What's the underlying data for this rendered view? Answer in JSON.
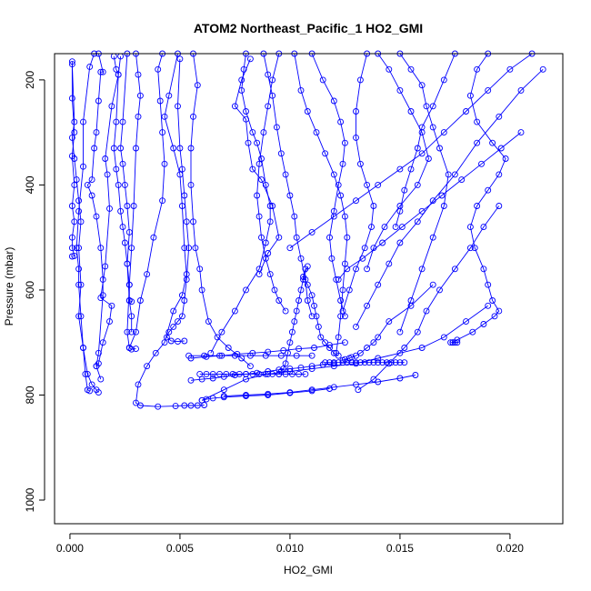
{
  "chart_data": {
    "type": "line",
    "title": "ATOM2 Northeast_Pacific_1 HO2_GMI",
    "xlabel": "HO2_GMI",
    "ylabel": "Pressure (mbar)",
    "xlim": [
      -0.0007,
      0.0224
    ],
    "ylim": [
      1045,
      150
    ],
    "y_reversed": true,
    "x_ticks": [
      "0.000",
      "0.005",
      "0.010",
      "0.015",
      "0.020"
    ],
    "y_ticks": [
      "200",
      "400",
      "600",
      "800",
      "1000"
    ],
    "grid": false,
    "legend": "none",
    "series_color": "#0000ff",
    "marker": "open-circle",
    "series": [
      {
        "x": [
          0.0001,
          0.0001,
          0.0002,
          0.0001,
          0.0002,
          0.0001,
          0.0002,
          0.0001,
          0.0001,
          0.0002,
          0.0001
        ],
        "y": [
          165,
          235,
          300,
          345,
          400,
          440,
          470,
          500,
          520,
          535,
          536
        ]
      },
      {
        "x": [
          0.0001,
          0.0002,
          0.0001,
          0.0002,
          0.0003,
          0.0004,
          0.0005,
          0.0004,
          0.0005,
          0.0004,
          0.0006,
          0.0008,
          0.001,
          0.0012,
          0.0013
        ],
        "y": [
          170,
          280,
          310,
          350,
          390,
          430,
          470,
          520,
          590,
          650,
          710,
          760,
          780,
          790,
          795
        ]
      },
      {
        "x": [
          0.0011,
          0.0009,
          0.0006,
          0.0006,
          0.0004,
          0.0003,
          0.0004,
          0.0004,
          0.0005,
          0.0006,
          0.0007,
          0.0008,
          0.0009
        ],
        "y": [
          150,
          175,
          280,
          365,
          450,
          520,
          560,
          590,
          650,
          710,
          760,
          790,
          792
        ]
      },
      {
        "x": [
          0.0013,
          0.0015,
          0.0014,
          0.0013,
          0.0012,
          0.0011,
          0.001,
          0.0008,
          0.001,
          0.0012,
          0.0014,
          0.0015,
          0.0015,
          0.0013,
          0.0012,
          0.0014
        ],
        "y": [
          150,
          185,
          185,
          240,
          300,
          330,
          390,
          400,
          420,
          460,
          520,
          580,
          610,
          720,
          745,
          770
        ]
      },
      {
        "x": [
          0.002,
          0.0021,
          0.0022,
          0.0019,
          0.0016,
          0.0017,
          0.0018,
          0.0016,
          0.0014,
          0.0019,
          0.0018,
          0.0015,
          0.0013,
          0.0012
        ],
        "y": [
          155,
          180,
          190,
          250,
          350,
          380,
          445,
          555,
          615,
          630,
          660,
          700,
          740,
          745
        ]
      },
      {
        "x": [
          0.0023,
          0.0022,
          0.0021,
          0.002,
          0.0021,
          0.0022,
          0.0023,
          0.0024,
          0.0025,
          0.0026,
          0.0027,
          0.0027,
          0.0028,
          0.0028
        ],
        "y": [
          155,
          190,
          280,
          330,
          370,
          400,
          450,
          480,
          510,
          550,
          590,
          620,
          650,
          680
        ]
      },
      {
        "x": [
          0.0026,
          0.0024,
          0.0023,
          0.0024,
          0.0025,
          0.0026,
          0.0027,
          0.0026,
          0.0027,
          0.0028
        ],
        "y": [
          150,
          280,
          330,
          360,
          400,
          440,
          490,
          550,
          620,
          622
        ]
      },
      {
        "x": [
          0.003,
          0.0031,
          0.0032,
          0.0031,
          0.003,
          0.0029,
          0.0028,
          0.0027,
          0.0026,
          0.0027,
          0.0028,
          0.003
        ],
        "y": [
          150,
          190,
          230,
          270,
          330,
          440,
          520,
          590,
          680,
          710,
          713,
          712
        ]
      },
      {
        "x": [
          0.0042,
          0.004,
          0.0041,
          0.0042,
          0.0043,
          0.0042,
          0.0038,
          0.0035,
          0.0032,
          0.003,
          0.0027
        ],
        "y": [
          150,
          180,
          240,
          300,
          360,
          430,
          500,
          570,
          620,
          680,
          710
        ]
      },
      {
        "x": [
          0.0049,
          0.0045,
          0.0043,
          0.0047,
          0.005,
          0.0051,
          0.0052,
          0.0053,
          0.0051,
          0.0047,
          0.0043,
          0.0039,
          0.0035,
          0.0031,
          0.003,
          0.0032,
          0.004,
          0.0048,
          0.0052,
          0.0055,
          0.0058,
          0.0061
        ],
        "y": [
          150,
          230,
          270,
          330,
          380,
          440,
          520,
          570,
          610,
          640,
          700,
          720,
          745,
          780,
          815,
          820,
          822,
          821,
          820,
          820,
          820,
          819
        ]
      },
      {
        "x": [
          0.005,
          0.0049,
          0.005,
          0.0051,
          0.0052,
          0.0053,
          0.0054,
          0.0053,
          0.0052,
          0.0051,
          0.0049,
          0.0047,
          0.0045,
          0.0044,
          0.0046,
          0.0049,
          0.0052
        ],
        "y": [
          160,
          250,
          330,
          370,
          420,
          470,
          520,
          580,
          620,
          650,
          660,
          670,
          680,
          690,
          697,
          698,
          697
        ]
      },
      {
        "x": [
          0.0056,
          0.0058,
          0.0056,
          0.0055,
          0.0055,
          0.0056,
          0.0057,
          0.0059,
          0.006,
          0.0063,
          0.0067,
          0.0072,
          0.0078,
          0.0082
        ],
        "y": [
          150,
          210,
          270,
          330,
          400,
          470,
          520,
          560,
          600,
          660,
          690,
          710,
          730,
          745
        ]
      },
      {
        "x": [
          0.008,
          0.0079,
          0.0078,
          0.008,
          0.0083,
          0.0085,
          0.0087,
          0.0089,
          0.0091,
          0.0091,
          0.0089,
          0.0086,
          0.008,
          0.0075,
          0.0069,
          0.0064
        ],
        "y": [
          150,
          180,
          220,
          260,
          300,
          320,
          350,
          400,
          440,
          470,
          510,
          560,
          600,
          640,
          680,
          720
        ]
      },
      {
        "x": [
          0.0088,
          0.009,
          0.0092,
          0.0094,
          0.0096,
          0.0098,
          0.01,
          0.0102,
          0.0103,
          0.0105,
          0.0107,
          0.0108,
          0.011
        ],
        "y": [
          150,
          190,
          230,
          290,
          340,
          380,
          420,
          460,
          500,
          540,
          580,
          620,
          650
        ]
      },
      {
        "x": [
          0.0082,
          0.0078,
          0.0075,
          0.008,
          0.0081,
          0.0083,
          0.0087,
          0.0092,
          0.0095,
          0.009,
          0.0086
        ],
        "y": [
          160,
          200,
          250,
          275,
          320,
          370,
          390,
          440,
          500,
          530,
          570
        ]
      },
      {
        "x": [
          0.0095,
          0.0092,
          0.009,
          0.0088,
          0.0086,
          0.0085,
          0.0086,
          0.0087,
          0.0089,
          0.0091,
          0.0093,
          0.0095,
          0.0098
        ],
        "y": [
          150,
          200,
          250,
          300,
          360,
          420,
          460,
          500,
          540,
          570,
          600,
          620,
          640
        ]
      },
      {
        "x": [
          0.0102,
          0.0105,
          0.0108,
          0.0112,
          0.0116,
          0.012,
          0.0123,
          0.0125,
          0.0126,
          0.0125,
          0.0124,
          0.0123,
          0.0122,
          0.0121
        ],
        "y": [
          150,
          220,
          260,
          300,
          340,
          380,
          420,
          460,
          500,
          550,
          600,
          650,
          690,
          720
        ]
      },
      {
        "x": [
          0.011,
          0.0115,
          0.012,
          0.0123,
          0.0125,
          0.0124,
          0.0122,
          0.012,
          0.0118,
          0.0119,
          0.0121,
          0.0123,
          0.0125
        ],
        "y": [
          150,
          200,
          240,
          280,
          320,
          360,
          400,
          450,
          500,
          540,
          580,
          620,
          650
        ]
      },
      {
        "x": [
          0.0135,
          0.0132,
          0.013,
          0.013,
          0.0132,
          0.0135,
          0.0138,
          0.0137,
          0.0134,
          0.013,
          0.0127,
          0.0124
        ],
        "y": [
          150,
          200,
          260,
          310,
          360,
          400,
          440,
          480,
          520,
          560,
          600,
          640
        ]
      },
      {
        "x": [
          0.014,
          0.0145,
          0.015,
          0.0155,
          0.016,
          0.0163,
          0.0158,
          0.015,
          0.0143,
          0.0138,
          0.0135
        ],
        "y": [
          150,
          180,
          220,
          260,
          300,
          350,
          400,
          440,
          480,
          520,
          560
        ]
      },
      {
        "x": [
          0.015,
          0.0155,
          0.016,
          0.0162,
          0.0165,
          0.0168,
          0.0172,
          0.017,
          0.0165,
          0.016,
          0.0155,
          0.015
        ],
        "y": [
          150,
          180,
          210,
          250,
          290,
          330,
          380,
          440,
          500,
          560,
          620,
          680
        ]
      },
      {
        "x": [
          0.0175,
          0.017,
          0.0165,
          0.016,
          0.0158,
          0.0155,
          0.0152,
          0.015,
          0.0148
        ],
        "y": [
          150,
          200,
          250,
          290,
          330,
          370,
          410,
          450,
          480
        ]
      },
      {
        "x": [
          0.019,
          0.0185,
          0.0182,
          0.0185,
          0.0192,
          0.0198,
          0.0195,
          0.019,
          0.0185,
          0.0182,
          0.0184,
          0.0188,
          0.019,
          0.0192,
          0.0195,
          0.0193,
          0.0188,
          0.0183,
          0.0176,
          0.0174
        ],
        "y": [
          150,
          180,
          230,
          280,
          320,
          350,
          380,
          410,
          440,
          480,
          520,
          560,
          590,
          620,
          640,
          650,
          665,
          680,
          695,
          700
        ]
      },
      {
        "x": [
          0.0215,
          0.0205,
          0.0195,
          0.0185,
          0.0175,
          0.0165,
          0.0158,
          0.015,
          0.0145,
          0.014,
          0.0135,
          0.013
        ],
        "y": [
          180,
          220,
          270,
          320,
          380,
          430,
          470,
          510,
          550,
          590,
          630,
          670
        ]
      },
      {
        "x": [
          0.021,
          0.02,
          0.019,
          0.018,
          0.017,
          0.016,
          0.015,
          0.014,
          0.013,
          0.012,
          0.011,
          0.01
        ],
        "y": [
          150,
          180,
          220,
          260,
          300,
          340,
          370,
          400,
          430,
          460,
          490,
          520
        ]
      },
      {
        "x": [
          0.0205,
          0.0196,
          0.0187,
          0.0178,
          0.0169,
          0.016,
          0.0151,
          0.0142,
          0.0133,
          0.0126,
          0.0122
        ],
        "y": [
          300,
          330,
          360,
          390,
          420,
          450,
          480,
          510,
          540,
          560,
          580
        ]
      },
      {
        "x": [
          0.0195,
          0.0188,
          0.0182,
          0.0175,
          0.0168,
          0.0162,
          0.0158,
          0.0152,
          0.0145,
          0.0138,
          0.0131
        ],
        "y": [
          440,
          480,
          520,
          560,
          600,
          640,
          680,
          710,
          740,
          770,
          790
        ]
      },
      {
        "x": [
          0.019,
          0.018,
          0.017,
          0.016,
          0.015,
          0.014,
          0.013,
          0.012,
          0.011,
          0.01,
          0.009,
          0.008,
          0.007,
          0.006
        ],
        "y": [
          630,
          660,
          690,
          710,
          720,
          730,
          740,
          745,
          750,
          755,
          760,
          770,
          790,
          810
        ]
      },
      {
        "x": [
          0.0165,
          0.0155,
          0.0145,
          0.014,
          0.0138,
          0.0135,
          0.0132,
          0.013,
          0.0128,
          0.0127,
          0.0125,
          0.0124
        ],
        "y": [
          590,
          630,
          660,
          690,
          700,
          710,
          720,
          725,
          728,
          730,
          732,
          734
        ]
      },
      {
        "x": [
          0.0152,
          0.015,
          0.0148,
          0.0146,
          0.0144,
          0.0142,
          0.014,
          0.0138,
          0.0136,
          0.0134,
          0.0132,
          0.013,
          0.0128,
          0.0126,
          0.0124,
          0.0122,
          0.012,
          0.0118,
          0.0116
        ],
        "y": [
          738,
          738,
          738,
          738,
          738,
          738,
          738,
          738,
          738,
          738,
          738,
          738,
          738,
          738,
          738,
          738,
          738,
          738,
          738
        ]
      },
      {
        "x": [
          0.012,
          0.0115,
          0.011,
          0.0105,
          0.01,
          0.0095,
          0.009,
          0.0085,
          0.008,
          0.0075,
          0.007,
          0.0065,
          0.006,
          0.0055
        ],
        "y": [
          740,
          742,
          745,
          748,
          750,
          752,
          755,
          758,
          760,
          762,
          765,
          768,
          770,
          772
        ]
      },
      {
        "x": [
          0.0107,
          0.0104,
          0.0101,
          0.0098,
          0.0095,
          0.0092,
          0.0089,
          0.0086,
          0.0083,
          0.008,
          0.0077,
          0.0074,
          0.0071,
          0.0068,
          0.0065,
          0.0062,
          0.0059
        ],
        "y": [
          760,
          760,
          760,
          760,
          760,
          760,
          760,
          760,
          760,
          760,
          760,
          760,
          760,
          760,
          760,
          760,
          760
        ]
      },
      {
        "x": [
          0.011,
          0.0103,
          0.0096,
          0.0089,
          0.0082,
          0.0075,
          0.0068,
          0.0061,
          0.0054
        ],
        "y": [
          725,
          725,
          725,
          725,
          725,
          725,
          725,
          725,
          725
        ]
      },
      {
        "x": [
          0.0125,
          0.0118,
          0.0111,
          0.0104,
          0.0097,
          0.009,
          0.0083,
          0.0076,
          0.0069,
          0.0062,
          0.0055
        ],
        "y": [
          700,
          705,
          710,
          712,
          715,
          718,
          720,
          722,
          725,
          727,
          730
        ]
      },
      {
        "x": [
          0.0108,
          0.0106,
          0.0105,
          0.0104,
          0.0103,
          0.0102,
          0.0101,
          0.01,
          0.0099,
          0.0098,
          0.0097,
          0.0096,
          0.0095
        ],
        "y": [
          555,
          580,
          600,
          620,
          640,
          660,
          680,
          700,
          720,
          740,
          750,
          755,
          760
        ]
      },
      {
        "x": [
          0.0107,
          0.0106,
          0.0108,
          0.011,
          0.0111,
          0.0112,
          0.0113,
          0.0114,
          0.0116,
          0.0118,
          0.012,
          0.0122
        ],
        "y": [
          560,
          575,
          590,
          610,
          630,
          650,
          670,
          690,
          700,
          710,
          720,
          725
        ]
      },
      {
        "x": [
          0.0157,
          0.015,
          0.014,
          0.013,
          0.012,
          0.011,
          0.01,
          0.009,
          0.008,
          0.007
        ],
        "y": [
          762,
          768,
          775,
          780,
          785,
          790,
          795,
          798,
          800,
          802
        ]
      },
      {
        "x": [
          0.0118,
          0.011,
          0.01,
          0.009,
          0.008,
          0.007,
          0.0065,
          0.0062,
          0.006
        ],
        "y": [
          788,
          792,
          796,
          800,
          802,
          804,
          806,
          808,
          810
        ]
      },
      {
        "x": [
          0.0173,
          0.0174,
          0.0175,
          0.0176
        ],
        "y": [
          700,
          700,
          700,
          700
        ]
      }
    ]
  }
}
